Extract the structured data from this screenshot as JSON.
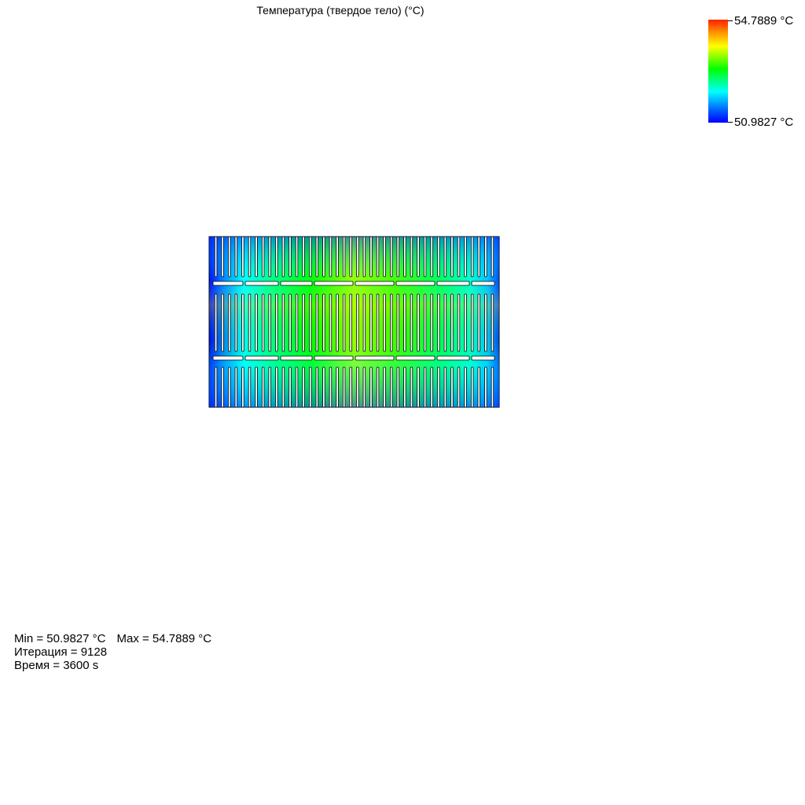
{
  "plot": {
    "title": "Температура (твердое тело) (°C)"
  },
  "legend": {
    "max_label": "54.7889 °C",
    "min_label": "50.9827 °C",
    "colors": [
      "#ff2000",
      "#ffa000",
      "#ffff00",
      "#00ff00",
      "#00ffff",
      "#0070ff",
      "#0000ff"
    ]
  },
  "info": {
    "min_text": "Min = 50.9827 °C",
    "max_text": "Max = 54.7889 °C",
    "iteration_text": "Итерация = 9128",
    "time_text": "Время = 3600 s"
  },
  "model": {
    "fin_count": 43,
    "slot_rows": 2,
    "slots_per_row": 8,
    "scale_min": 50.9827,
    "scale_max": 54.7889
  }
}
